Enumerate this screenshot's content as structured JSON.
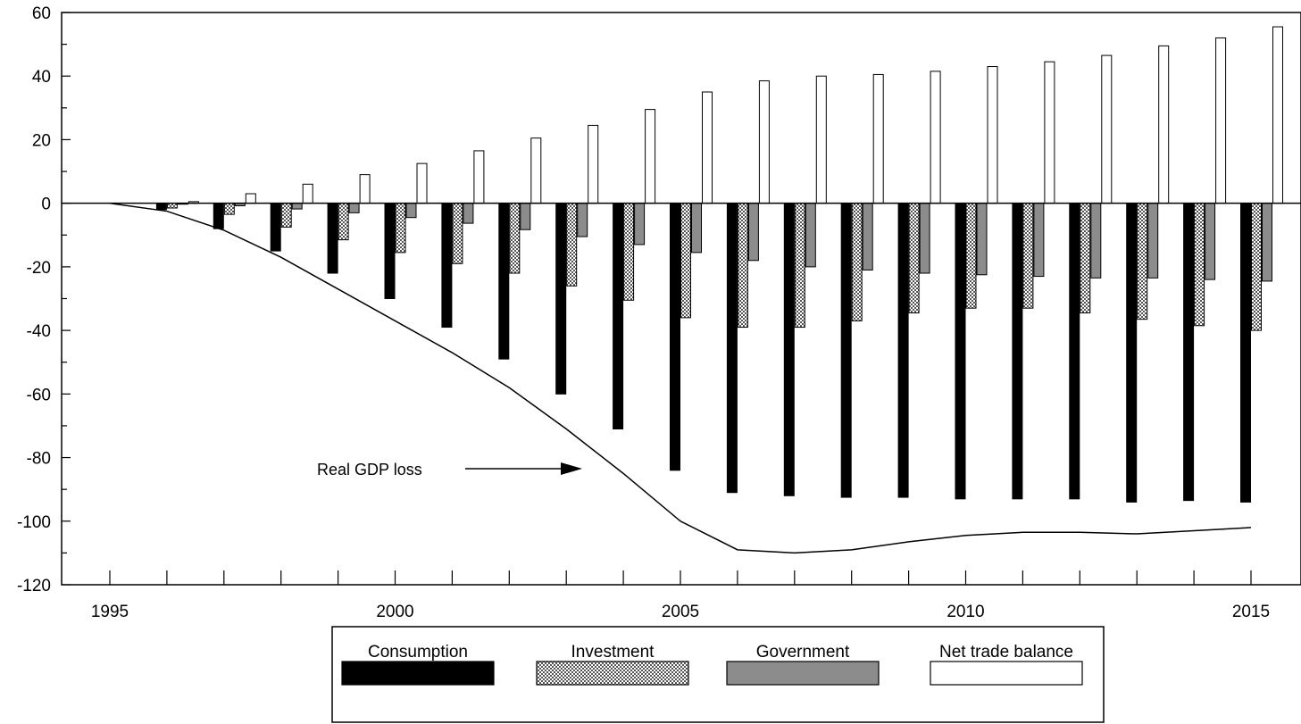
{
  "chart_data": {
    "type": "bar",
    "title": "",
    "xlabel": "",
    "ylabel": "",
    "ylim": [
      -120,
      60
    ],
    "yticks": [
      60,
      40,
      20,
      0,
      -20,
      -40,
      -60,
      -80,
      -100,
      -120
    ],
    "x": [
      1995,
      1996,
      1997,
      1998,
      1999,
      2000,
      2001,
      2002,
      2003,
      2004,
      2005,
      2006,
      2007,
      2008,
      2009,
      2010,
      2011,
      2012,
      2013,
      2014,
      2015
    ],
    "xtick_labels": [
      "1995",
      "2000",
      "2005",
      "2010",
      "2015"
    ],
    "grid": false,
    "series": [
      {
        "name": "Consumption",
        "color": "#000000",
        "values": [
          0,
          -2,
          -8,
          -15,
          -22,
          -30,
          -39,
          -49,
          -60,
          -71,
          -84,
          -91,
          -92,
          -92.5,
          -92.5,
          -93,
          -93,
          -93,
          -94,
          -93.5,
          -94
        ]
      },
      {
        "name": "Investment",
        "color": "#c8c8c8",
        "values": [
          0,
          -1.5,
          -3.5,
          -7.5,
          -11.5,
          -15.5,
          -19,
          -22,
          -26,
          -30.5,
          -36,
          -39,
          -39,
          -37,
          -34.5,
          -33,
          -33,
          -34.5,
          -36.5,
          -38.5,
          -40
        ]
      },
      {
        "name": "Government",
        "color": "#8c8c8c",
        "values": [
          0,
          -0.3,
          -0.8,
          -1.8,
          -3,
          -4.5,
          -6.3,
          -8.3,
          -10.5,
          -13,
          -15.5,
          -18,
          -20,
          -21,
          -22,
          -22.5,
          -23,
          -23.5,
          -23.5,
          -24,
          -24.5
        ]
      },
      {
        "name": "Net trade balance",
        "color": "#ffffff",
        "values": [
          0,
          0.5,
          3,
          6,
          9,
          12.5,
          16.5,
          20.5,
          24.5,
          29.5,
          35,
          38.5,
          40,
          40.5,
          41.5,
          43,
          44.5,
          46.5,
          49.5,
          52,
          55.5
        ]
      }
    ],
    "line": {
      "values": [
        0,
        -2.5,
        -8.5,
        -17,
        -27,
        -37,
        -47,
        -58,
        -71,
        -85,
        -100,
        -109,
        -110,
        -109,
        -106.5,
        -104.5,
        -103.5,
        -103.5,
        -104,
        -103,
        -102
      ]
    },
    "annotation": {
      "text": "Real GDP loss"
    },
    "legend_position": "bottom"
  }
}
